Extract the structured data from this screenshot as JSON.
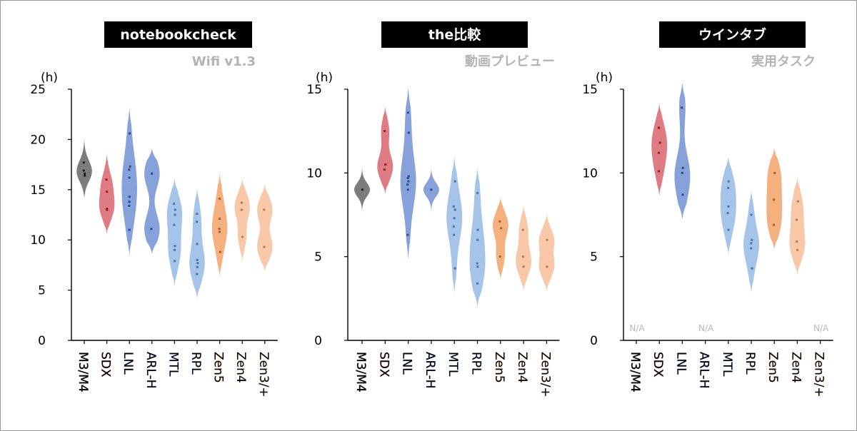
{
  "colors": {
    "M3/M4": "#2b2b2b",
    "SDX": "#cc2a35",
    "LNL": "#3e68c3",
    "ARL-H": "#3e68c3",
    "MTL": "#6d9fdb",
    "RPL": "#6d9fdb",
    "Zen5": "#ef8030",
    "Zen4": "#f5a774",
    "Zen3/+": "#f5a774",
    "title_bg": "#000000",
    "subtitle": "#b3b3b3",
    "na_text": "#b8b8b8"
  },
  "chart_data": [
    {
      "type": "violin",
      "title": "notebookcheck",
      "subtitle": "Wifi v1.3",
      "ylabel": "(h)",
      "ylim": [
        0,
        25
      ],
      "yticks": [
        0,
        5,
        10,
        15,
        20,
        25
      ],
      "ytick_labels": [
        "0",
        "5",
        "10",
        "15",
        "20",
        "25"
      ],
      "categories": [
        "M3/M4",
        "SDX",
        "LNL",
        "ARL-H",
        "MTL",
        "RPL",
        "Zen5",
        "Zen4",
        "Zen3/+"
      ],
      "series": [
        {
          "category": "M3/M4",
          "values": [
            17.7,
            16.9,
            16.6,
            16.4
          ],
          "range": [
            13.9,
            20.4
          ],
          "color": "#2b2b2b"
        },
        {
          "category": "SDX",
          "values": [
            16.0,
            14.8,
            13.1,
            13.0
          ],
          "range": [
            10.5,
            18.7
          ],
          "color": "#cc2a35"
        },
        {
          "category": "LNL",
          "values": [
            20.6,
            17.3,
            17.0,
            16.2,
            14.3,
            13.8,
            13.4,
            11.0
          ],
          "range": [
            8.4,
            23.2
          ],
          "color": "#3e68c3"
        },
        {
          "category": "ARL-H",
          "values": [
            16.6,
            11.1
          ],
          "range": [
            8.6,
            19.1
          ],
          "color": "#3e68c3"
        },
        {
          "category": "MTL",
          "values": [
            13.6,
            13.0,
            12.5,
            11.5,
            9.4,
            9.0,
            7.9
          ],
          "range": [
            5.3,
            16.2
          ],
          "color": "#6d9fdb"
        },
        {
          "category": "RPL",
          "values": [
            12.6,
            11.8,
            9.6,
            8.0,
            7.7,
            7.3,
            6.6
          ],
          "range": [
            4.1,
            15.2
          ],
          "color": "#6d9fdb"
        },
        {
          "category": "Zen5",
          "values": [
            14.1,
            12.1,
            11.1,
            10.8,
            8.8
          ],
          "range": [
            6.3,
            16.7
          ],
          "color": "#ef8030"
        },
        {
          "category": "Zen4",
          "values": [
            13.7,
            13.0,
            10.3
          ],
          "range": [
            7.8,
            16.2
          ],
          "color": "#f5a774"
        },
        {
          "category": "Zen3/+",
          "values": [
            13.0,
            9.3
          ],
          "range": [
            6.8,
            15.6
          ],
          "color": "#f5a774"
        }
      ]
    },
    {
      "type": "violin",
      "title": "the比較",
      "subtitle": "動画プレビュー",
      "ylabel": "(h)",
      "ylim": [
        0,
        15
      ],
      "yticks": [
        0,
        5,
        10,
        15
      ],
      "ytick_labels": [
        "0",
        "5",
        "10",
        "15"
      ],
      "categories": [
        "M3/M4",
        "SDX",
        "LNL",
        "ARL-H",
        "MTL",
        "RPL",
        "Zen5",
        "Zen4",
        "Zen3/+"
      ],
      "series": [
        {
          "category": "M3/M4",
          "values": [
            9.0
          ],
          "range": [
            7.5,
            10.5
          ],
          "color": "#2b2b2b"
        },
        {
          "category": "SDX",
          "values": [
            12.5,
            10.5,
            10.2
          ],
          "range": [
            8.7,
            14.0
          ],
          "color": "#cc2a35"
        },
        {
          "category": "LNL",
          "values": [
            13.6,
            12.4,
            9.8,
            9.7,
            9.5,
            9.3,
            9.0,
            6.3
          ],
          "range": [
            4.8,
            15.1
          ],
          "color": "#3e68c3"
        },
        {
          "category": "ARL-H",
          "values": [
            9.0
          ],
          "range": [
            7.5,
            10.5
          ],
          "color": "#3e68c3"
        },
        {
          "category": "MTL",
          "values": [
            9.5,
            8.0,
            7.8,
            7.3,
            6.8,
            6.3,
            4.3
          ],
          "range": [
            2.8,
            11.0
          ],
          "color": "#6d9fdb"
        },
        {
          "category": "RPL",
          "values": [
            8.8,
            6.6,
            6.0,
            4.6,
            4.4,
            3.4
          ],
          "range": [
            2.0,
            10.3
          ],
          "color": "#6d9fdb"
        },
        {
          "category": "Zen5",
          "values": [
            7.1,
            6.7,
            5.0
          ],
          "range": [
            3.6,
            8.6
          ],
          "color": "#ef8030"
        },
        {
          "category": "Zen4",
          "values": [
            6.6,
            5.0,
            4.4
          ],
          "range": [
            2.9,
            8.1
          ],
          "color": "#f5a774"
        },
        {
          "category": "Zen3/+",
          "values": [
            6.0,
            4.4
          ],
          "range": [
            2.9,
            7.6
          ],
          "color": "#f5a774"
        }
      ]
    },
    {
      "type": "violin",
      "title": "ウインタブ",
      "subtitle": "実用タスク",
      "ylabel": "(h)",
      "ylim": [
        0,
        15
      ],
      "yticks": [
        0,
        5,
        10,
        15
      ],
      "ytick_labels": [
        "0",
        "5",
        "10",
        "15"
      ],
      "categories": [
        "M3/M4",
        "SDX",
        "LNL",
        "ARL-H",
        "MTL",
        "RPL",
        "Zen5",
        "Zen4",
        "Zen3/+"
      ],
      "na_label": "N/A",
      "series": [
        {
          "category": "M3/M4",
          "values": [],
          "na": true,
          "color": "#2b2b2b"
        },
        {
          "category": "SDX",
          "values": [
            12.7,
            11.8,
            11.2,
            10.1
          ],
          "range": [
            8.6,
            14.2
          ],
          "color": "#cc2a35"
        },
        {
          "category": "LNL",
          "values": [
            13.9,
            10.3,
            10.0,
            8.7
          ],
          "range": [
            7.2,
            15.4
          ],
          "color": "#3e68c3"
        },
        {
          "category": "ARL-H",
          "values": [],
          "na": true,
          "color": "#3e68c3"
        },
        {
          "category": "MTL",
          "values": [
            9.5,
            9.1,
            8.0,
            7.6,
            6.6
          ],
          "range": [
            5.1,
            11.0
          ],
          "color": "#6d9fdb"
        },
        {
          "category": "RPL",
          "values": [
            7.5,
            6.0,
            5.8,
            5.5,
            4.3
          ],
          "range": [
            2.8,
            9.0
          ],
          "color": "#6d9fdb"
        },
        {
          "category": "Zen5",
          "values": [
            10.0,
            8.4,
            6.9
          ],
          "range": [
            5.4,
            11.5
          ],
          "color": "#ef8030"
        },
        {
          "category": "Zen4",
          "values": [
            8.3,
            7.2,
            5.9,
            5.4
          ],
          "range": [
            3.9,
            9.8
          ],
          "color": "#f5a774"
        },
        {
          "category": "Zen3/+",
          "values": [],
          "na": true,
          "color": "#f5a774"
        }
      ]
    }
  ]
}
